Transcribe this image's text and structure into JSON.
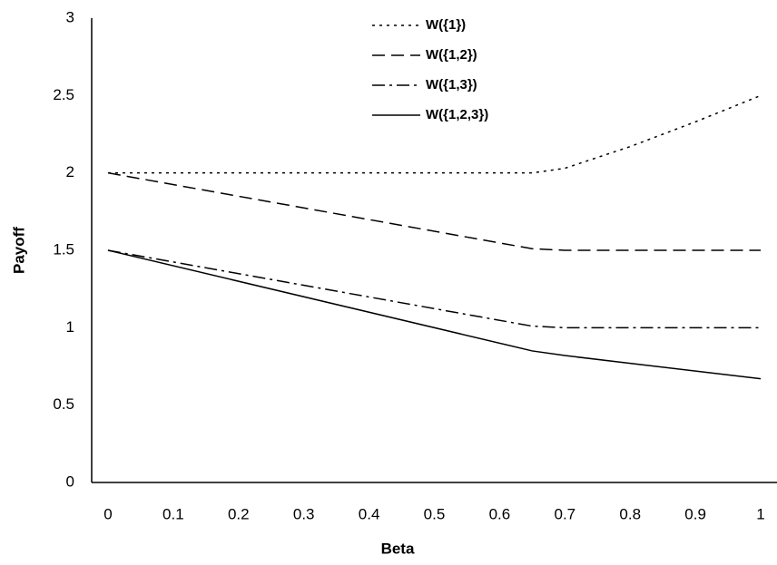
{
  "chart_data": {
    "type": "line",
    "xlabel": "Beta",
    "ylabel": "Payoff",
    "x": [
      0,
      0.65,
      0.7,
      0.8,
      0.9,
      1
    ],
    "series": [
      {
        "name": "W({1})",
        "color": "#000000",
        "dash": "dotted",
        "values": [
          2,
          2,
          2.03,
          2.17,
          2.33,
          2.5
        ]
      },
      {
        "name": "W({1,2})",
        "color": "#000000",
        "dash": "dashed",
        "values": [
          2,
          1.51,
          1.5,
          1.5,
          1.5,
          1.5
        ]
      },
      {
        "name": "W({1,3})",
        "color": "#000000",
        "dash": "dashdot",
        "values": [
          1.5,
          1.01,
          1,
          1,
          1,
          1
        ]
      },
      {
        "name": "W({1,2,3})",
        "color": "#000000",
        "dash": "solid",
        "values": [
          1.5,
          0.85,
          0.82,
          0.77,
          0.72,
          0.67
        ]
      }
    ],
    "xlim": [
      -0.025,
      1.025
    ],
    "xticks": [
      0,
      0.1,
      0.2,
      0.3,
      0.4,
      0.5,
      0.6,
      0.7,
      0.8,
      0.9,
      1
    ],
    "ylim": [
      0,
      3
    ],
    "yticks": [
      0,
      0.5,
      1,
      1.5,
      2,
      2.5,
      3
    ],
    "grid": false,
    "legend": "top"
  }
}
